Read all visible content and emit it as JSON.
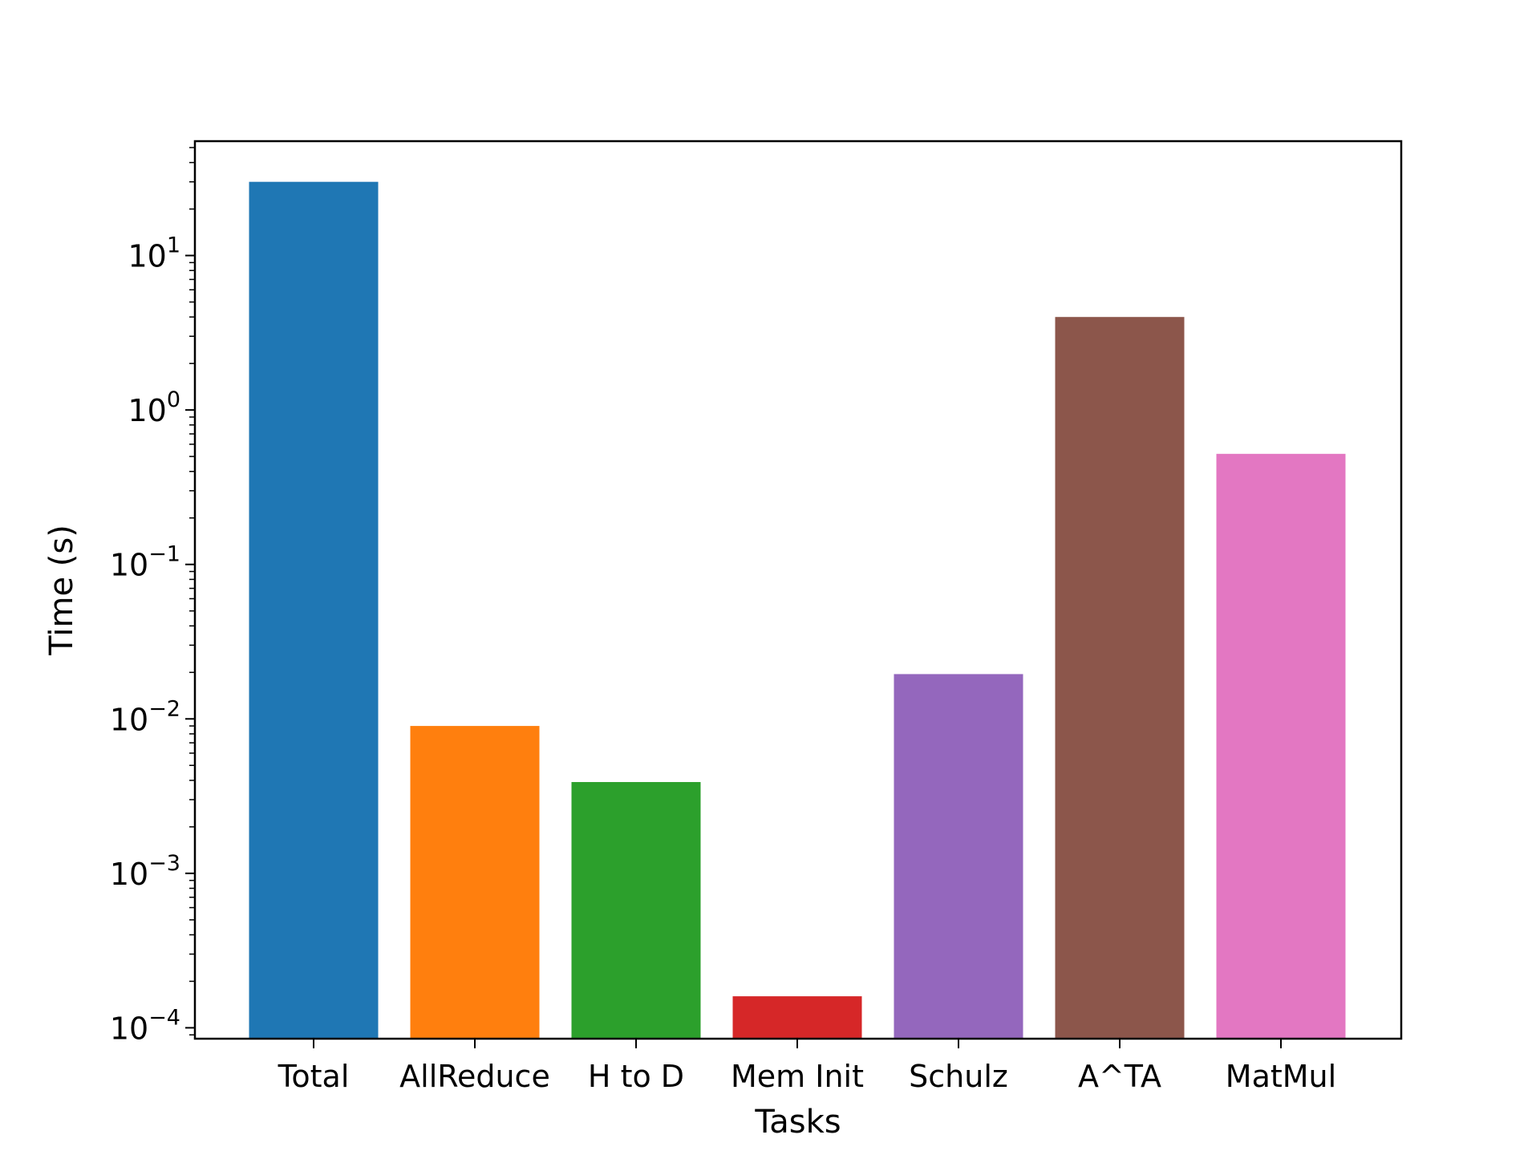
{
  "chart_data": {
    "type": "bar",
    "title": "",
    "xlabel": "Tasks",
    "ylabel": "Time (s)",
    "yscale": "log",
    "ylim": [
      8.5e-05,
      55
    ],
    "yticks": [
      {
        "value": 0.0001,
        "base": "10",
        "exp": "−4"
      },
      {
        "value": 0.001,
        "base": "10",
        "exp": "−3"
      },
      {
        "value": 0.01,
        "base": "10",
        "exp": "−2"
      },
      {
        "value": 0.1,
        "base": "10",
        "exp": "−1"
      },
      {
        "value": 1,
        "base": "10",
        "exp": "0"
      },
      {
        "value": 10,
        "base": "10",
        "exp": "1"
      }
    ],
    "categories": [
      "Total",
      "AllReduce",
      "H to D",
      "Mem Init",
      "Schulz",
      "A^TA",
      "MatMul"
    ],
    "values": [
      30,
      0.009,
      0.0039,
      0.00016,
      0.0195,
      4.0,
      0.52
    ],
    "colors": [
      "#1f77b4",
      "#ff7f0e",
      "#2ca02c",
      "#d62728",
      "#9467bd",
      "#8c564b",
      "#e377c2"
    ],
    "grid": false,
    "legend": "none"
  }
}
